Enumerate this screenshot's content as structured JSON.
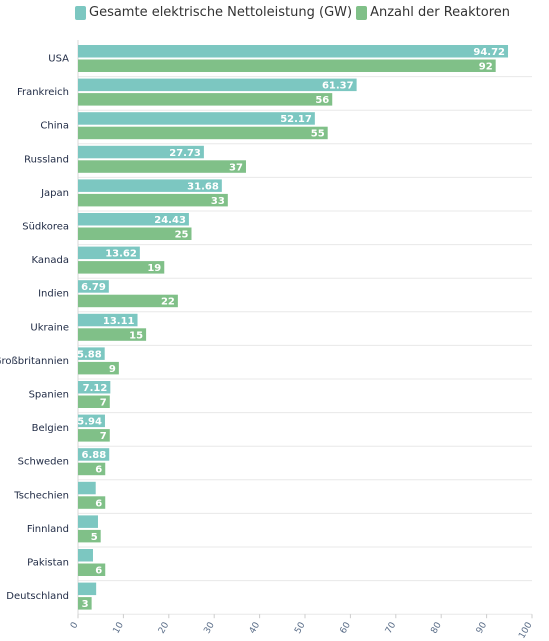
{
  "chart_data": {
    "type": "bar",
    "orientation": "horizontal",
    "categories": [
      "USA",
      "Frankreich",
      "China",
      "Russland",
      "Japan",
      "Südkorea",
      "Kanada",
      "Indien",
      "Ukraine",
      "Großbritannien",
      "Spanien",
      "Belgien",
      "Schweden",
      "Tschechien",
      "Finnland",
      "Pakistan",
      "Deutschland"
    ],
    "series": [
      {
        "name": "Gesamte elektrische Nettoleistung (GW)",
        "color": "#7cc7c1",
        "values": [
          94.72,
          61.37,
          52.17,
          27.73,
          31.68,
          24.43,
          13.62,
          6.79,
          13.11,
          5.88,
          7.12,
          5.94,
          6.88,
          3.9,
          4.4,
          3.3,
          4.0
        ],
        "labels": [
          "94.72",
          "61.37",
          "52.17",
          "27.73",
          "31.68",
          "24.43",
          "13.62",
          "6.79",
          "13.11",
          "5.88",
          "7.12",
          "5.94",
          "6.88",
          "",
          "",
          "",
          ""
        ]
      },
      {
        "name": "Anzahl der Reaktoren",
        "color": "#80c088",
        "values": [
          92,
          56,
          55,
          37,
          33,
          25,
          19,
          22,
          15,
          9,
          7,
          7,
          6,
          6,
          5,
          6,
          3
        ],
        "labels": [
          "92",
          "56",
          "55",
          "37",
          "33",
          "25",
          "19",
          "22",
          "15",
          "9",
          "7",
          "7",
          "6",
          "6",
          "5",
          "6",
          "3"
        ]
      }
    ],
    "xlim": [
      0,
      100
    ],
    "xticks": [
      "0",
      "10",
      "20",
      "30",
      "40",
      "50",
      "60",
      "70",
      "80",
      "90",
      "100"
    ],
    "grid": true,
    "legend": "top-left"
  }
}
